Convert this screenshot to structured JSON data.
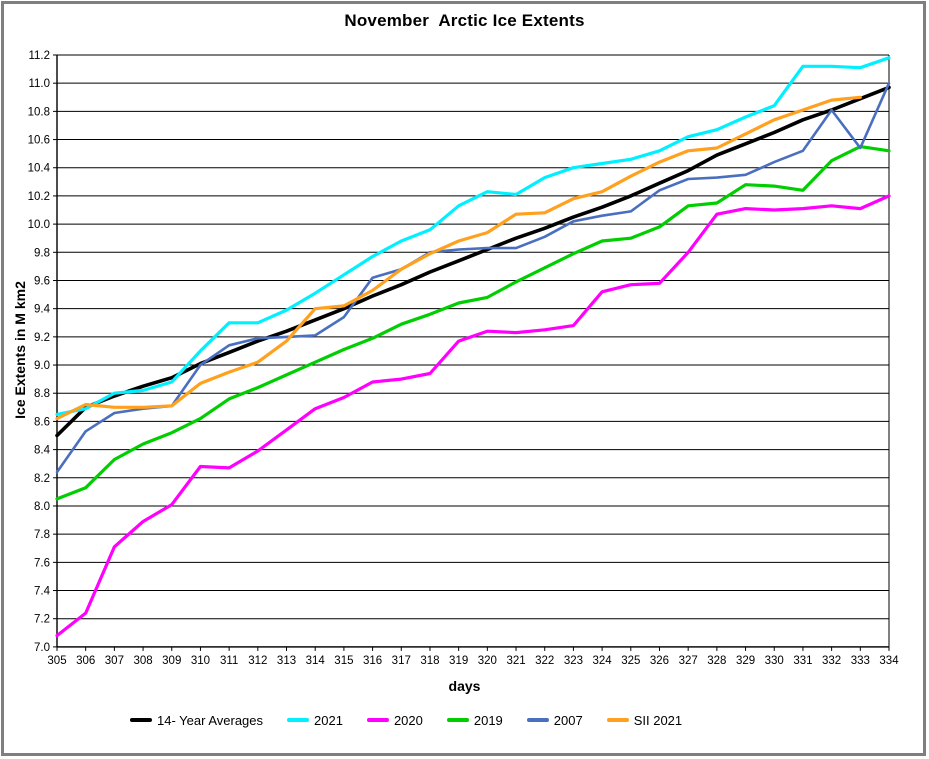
{
  "title": "November  Arctic Ice Extents",
  "chart_data": {
    "type": "line",
    "title": "November  Arctic Ice Extents",
    "xlabel": "days",
    "ylabel": "Ice Extents in M km2",
    "x_range": [
      305,
      334
    ],
    "x_tick_step": 1,
    "ylim": [
      7.0,
      11.2
    ],
    "y_tick_step": 0.2,
    "grid": true,
    "legend_position": "bottom",
    "x": [
      305,
      306,
      307,
      308,
      309,
      310,
      311,
      312,
      313,
      314,
      315,
      316,
      317,
      318,
      319,
      320,
      321,
      322,
      323,
      324,
      325,
      326,
      327,
      328,
      329,
      330,
      331,
      332,
      333,
      334
    ],
    "series": [
      {
        "name": "14- Year Averages",
        "color": "#000000",
        "width": 3.6,
        "values": [
          8.5,
          8.7,
          8.78,
          8.85,
          8.91,
          9.01,
          9.09,
          9.17,
          9.24,
          9.32,
          9.4,
          9.49,
          9.57,
          9.66,
          9.74,
          9.82,
          9.9,
          9.97,
          10.05,
          10.12,
          10.2,
          10.29,
          10.38,
          10.49,
          10.57,
          10.65,
          10.74,
          10.81,
          10.89,
          10.97
        ]
      },
      {
        "name": "2021",
        "color": "#00F0FF",
        "width": 3.2,
        "values": [
          8.65,
          8.69,
          8.8,
          8.82,
          8.88,
          9.1,
          9.3,
          9.3,
          9.39,
          9.51,
          9.64,
          9.77,
          9.88,
          9.96,
          10.13,
          10.23,
          10.21,
          10.33,
          10.4,
          10.43,
          10.46,
          10.52,
          10.62,
          10.67,
          10.76,
          10.84,
          11.12,
          11.12,
          11.11,
          11.18
        ]
      },
      {
        "name": "2020",
        "color": "#FF00FF",
        "width": 3.2,
        "values": [
          7.08,
          7.24,
          7.71,
          7.89,
          8.01,
          8.28,
          8.27,
          8.39,
          8.54,
          8.69,
          8.77,
          8.88,
          8.9,
          8.94,
          9.17,
          9.24,
          9.23,
          9.25,
          9.28,
          9.52,
          9.57,
          9.58,
          9.8,
          10.07,
          10.11,
          10.1,
          10.11,
          10.13,
          10.11,
          10.2
        ]
      },
      {
        "name": "2019",
        "color": "#00CE00",
        "width": 3.2,
        "values": [
          8.05,
          8.13,
          8.33,
          8.44,
          8.52,
          8.62,
          8.76,
          8.84,
          8.93,
          9.02,
          9.11,
          9.19,
          9.29,
          9.36,
          9.44,
          9.48,
          9.59,
          9.69,
          9.79,
          9.88,
          9.9,
          9.98,
          10.13,
          10.15,
          10.28,
          10.27,
          10.24,
          10.45,
          10.55,
          10.52
        ]
      },
      {
        "name": "2007",
        "color": "#4A6FBF",
        "width": 2.6,
        "values": [
          8.24,
          8.53,
          8.66,
          8.69,
          8.71,
          9.0,
          9.14,
          9.19,
          9.2,
          9.21,
          9.34,
          9.62,
          9.68,
          9.8,
          9.82,
          9.83,
          9.83,
          9.91,
          10.02,
          10.06,
          10.09,
          10.24,
          10.32,
          10.33,
          10.35,
          10.44,
          10.52,
          10.81,
          10.54,
          11.0
        ]
      },
      {
        "name": "SII 2021",
        "color": "#FFA01E",
        "width": 3.2,
        "values": [
          8.62,
          8.72,
          8.7,
          8.7,
          8.71,
          8.87,
          8.95,
          9.02,
          9.17,
          9.4,
          9.42,
          9.53,
          9.68,
          9.79,
          9.88,
          9.94,
          10.07,
          10.08,
          10.18,
          10.23,
          10.34,
          10.44,
          10.52,
          10.54,
          10.64,
          10.74,
          10.81,
          10.88,
          10.9,
          null
        ]
      }
    ]
  },
  "axis": {
    "x_label": "days",
    "y_label": "Ice Extents in M km2"
  }
}
